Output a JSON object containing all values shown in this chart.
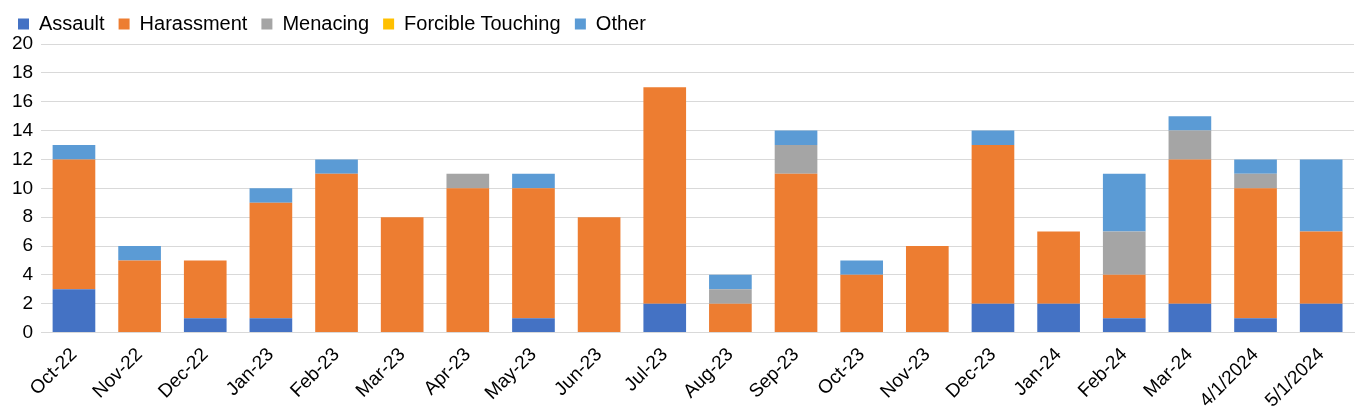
{
  "chart_data": {
    "type": "bar",
    "stacked": true,
    "categories": [
      "Oct-22",
      "Nov-22",
      "Dec-22",
      "Jan-23",
      "Feb-23",
      "Mar-23",
      "Apr-23",
      "May-23",
      "Jun-23",
      "Jul-23",
      "Aug-23",
      "Sep-23",
      "Oct-23",
      "Nov-23",
      "Dec-23",
      "Jan-24",
      "Feb-24",
      "Mar-24",
      "4/1/2024",
      "5/1/2024"
    ],
    "series": [
      {
        "name": "Assault",
        "color": "#4472c4",
        "values": [
          3,
          0,
          1,
          1,
          0,
          0,
          0,
          1,
          0,
          2,
          0,
          0,
          0,
          0,
          2,
          2,
          1,
          2,
          1,
          2
        ]
      },
      {
        "name": "Harassment",
        "color": "#ed7d31",
        "values": [
          9,
          5,
          4,
          8,
          11,
          8,
          10,
          9,
          8,
          15,
          2,
          11,
          4,
          6,
          11,
          5,
          3,
          10,
          9,
          5
        ]
      },
      {
        "name": "Menacing",
        "color": "#a5a5a5",
        "values": [
          0,
          0,
          0,
          0,
          0,
          0,
          1,
          0,
          0,
          0,
          1,
          2,
          0,
          0,
          0,
          0,
          3,
          2,
          1,
          0
        ]
      },
      {
        "name": "Forcible Touching",
        "color": "#ffc000",
        "values": [
          0,
          0,
          0,
          0,
          0,
          0,
          0,
          0,
          0,
          0,
          0,
          0,
          0,
          0,
          0,
          0,
          0,
          0,
          0,
          0
        ]
      },
      {
        "name": "Other",
        "color": "#5b9bd5",
        "values": [
          1,
          1,
          0,
          1,
          1,
          0,
          0,
          1,
          0,
          0,
          1,
          1,
          1,
          0,
          1,
          0,
          4,
          1,
          1,
          5
        ]
      }
    ],
    "ylim": [
      0,
      20
    ],
    "yticks": [
      0,
      2,
      4,
      6,
      8,
      10,
      12,
      14,
      16,
      18,
      20
    ],
    "grid": "y",
    "legend": "top left"
  }
}
